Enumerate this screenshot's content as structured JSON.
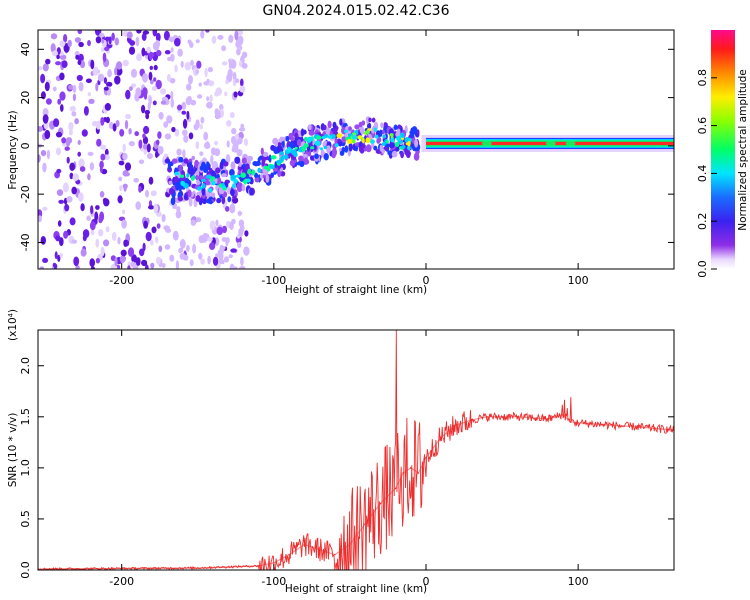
{
  "figure": {
    "title": "GN04.2024.015.02.42.C36"
  },
  "chart_data": [
    {
      "type": "heatmap",
      "xlabel": "Height of straight line (km)",
      "ylabel": "Frequency (Hz)",
      "xlim": [
        -255,
        163
      ],
      "ylim": [
        -51,
        48
      ],
      "xticks": [
        -200,
        -100,
        0,
        100
      ],
      "yticks": [
        -40,
        -20,
        0,
        20,
        40
      ],
      "grid": false,
      "colorbar": {
        "label": "Normalized spectral amplitude",
        "range": [
          0,
          1
        ],
        "ticks": [
          0.0,
          0.2,
          0.4,
          0.6,
          0.8
        ],
        "colormap": "rainbow (magenta-purple-blue-cyan-green-yellow-red)"
      },
      "ridge": {
        "x": [
          -165,
          -140,
          -120,
          -100,
          -80,
          -60,
          -40,
          -20,
          0,
          40,
          80,
          120,
          163
        ],
        "y": [
          -14,
          -16,
          -13,
          -6,
          0,
          3,
          5,
          2,
          1,
          1,
          1,
          0,
          0
        ]
      },
      "features": {
        "noise_region_x": [
          -255,
          -118
        ],
        "noise_region_y": [
          -51,
          48
        ],
        "band_start_x": 0,
        "band_freq_hz": 1
      }
    },
    {
      "type": "line",
      "xlabel": "Height of straight line (km)",
      "ylabel": "SNR (10 * v/v)",
      "multiplier": "(x10⁴)",
      "xlim": [
        -255,
        163
      ],
      "ylim": [
        0,
        2.35
      ],
      "xticks": [
        -200,
        -100,
        0,
        100
      ],
      "yticks": [
        0.0,
        0.5,
        1.0,
        1.5,
        2.0
      ],
      "grid": false,
      "color": "#ee2e2e",
      "series": [
        {
          "x": [
            -255,
            -150,
            -110,
            -100,
            -90,
            -80,
            -70,
            -60,
            -50,
            -40,
            -30,
            -20,
            -15,
            -10,
            -5,
            0,
            10,
            20,
            30,
            40,
            60,
            80,
            90,
            95,
            100,
            120,
            140,
            163
          ],
          "values": [
            0.01,
            0.02,
            0.04,
            0.07,
            0.15,
            0.25,
            0.2,
            0.15,
            0.25,
            0.45,
            0.65,
            0.8,
            0.95,
            1.0,
            0.95,
            1.1,
            1.3,
            1.42,
            1.47,
            1.5,
            1.5,
            1.48,
            1.52,
            1.45,
            1.44,
            1.42,
            1.4,
            1.37
          ]
        }
      ]
    }
  ]
}
